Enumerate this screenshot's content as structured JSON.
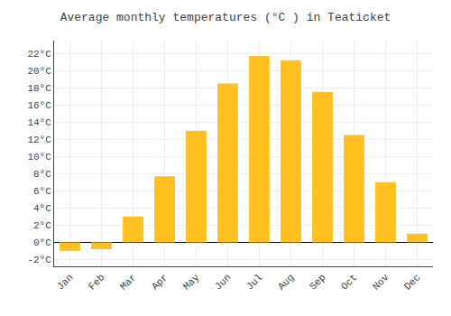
{
  "chart_data": {
    "type": "bar",
    "title": "Average monthly temperatures (°C ) in Teaticket",
    "categories": [
      "Jan",
      "Feb",
      "Mar",
      "Apr",
      "May",
      "Jun",
      "Jul",
      "Aug",
      "Sep",
      "Oct",
      "Nov",
      "Dec"
    ],
    "values": [
      -1.0,
      -0.8,
      3.0,
      7.7,
      13.0,
      18.5,
      21.7,
      21.2,
      17.5,
      12.5,
      7.0,
      1.0
    ],
    "color": "#FFC020",
    "ylim": [
      -2.8,
      23.5
    ],
    "yticks": [
      {
        "value": -2,
        "label": "-2°C"
      },
      {
        "value": 0,
        "label": "0°C"
      },
      {
        "value": 2,
        "label": "2°C"
      },
      {
        "value": 4,
        "label": "4°C"
      },
      {
        "value": 6,
        "label": "6°C"
      },
      {
        "value": 8,
        "label": "8°C"
      },
      {
        "value": 10,
        "label": "10°C"
      },
      {
        "value": 12,
        "label": "12°C"
      },
      {
        "value": 14,
        "label": "14°C"
      },
      {
        "value": 16,
        "label": "16°C"
      },
      {
        "value": 18,
        "label": "18°C"
      },
      {
        "value": 20,
        "label": "20°C"
      },
      {
        "value": 22,
        "label": "22°C"
      }
    ],
    "grid": true
  }
}
